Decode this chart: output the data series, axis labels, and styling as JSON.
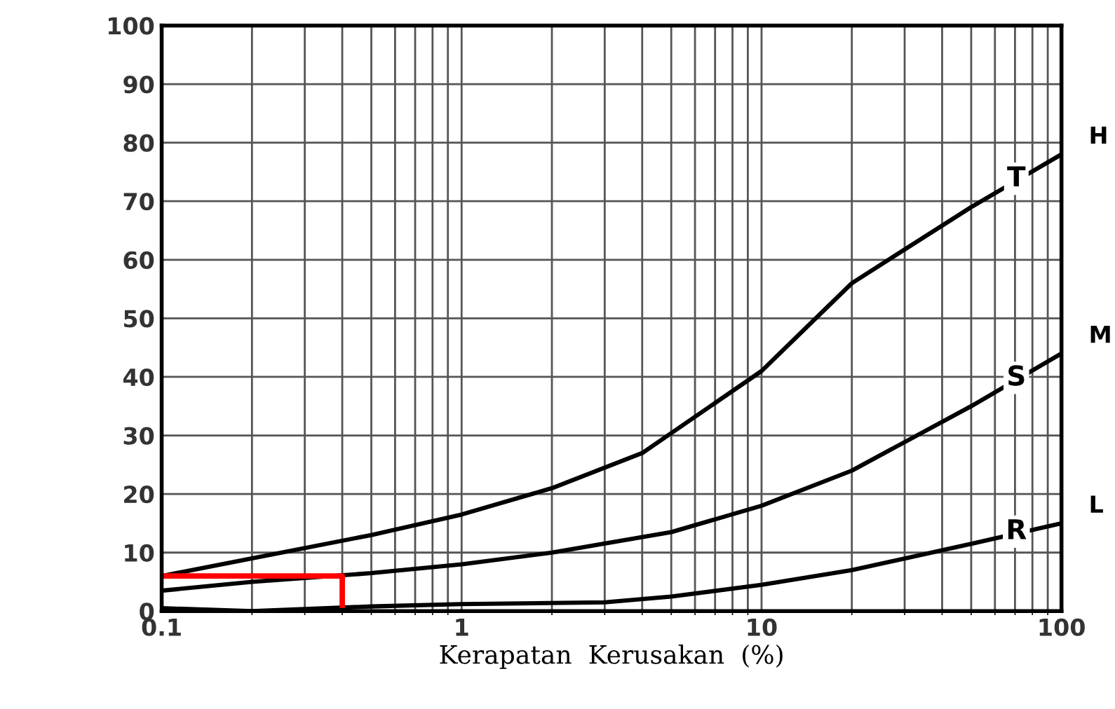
{
  "chart_data": {
    "type": "line",
    "xlabel": "Kerapatan  Kerusakan  (%)",
    "log": "x",
    "xlim": [
      0.1,
      100
    ],
    "xticks": [
      0.1,
      1,
      10,
      100
    ],
    "ylim": [
      0,
      100
    ],
    "yticks": [
      0,
      10,
      20,
      30,
      40,
      50,
      60,
      70,
      80,
      90,
      100
    ],
    "grid": true,
    "series": [
      {
        "name": "H",
        "color": "#000000",
        "x": [
          0.1,
          0.2,
          0.5,
          1,
          2,
          4,
          10,
          20,
          50,
          100
        ],
        "values": [
          6,
          9,
          13,
          16.5,
          21,
          27,
          41,
          56,
          69,
          78
        ]
      },
      {
        "name": "M",
        "color": "#000000",
        "x": [
          0.1,
          0.2,
          0.5,
          1,
          2,
          5,
          10,
          20,
          50,
          100
        ],
        "values": [
          3.5,
          5,
          6.5,
          8,
          10,
          13.5,
          18,
          24,
          35,
          44
        ]
      },
      {
        "name": "L",
        "color": "#000000",
        "x": [
          0.1,
          0.2,
          0.5,
          1,
          3,
          5,
          10,
          20,
          50,
          100
        ],
        "values": [
          0.5,
          0,
          0.8,
          1.2,
          1.5,
          2.5,
          4.5,
          7,
          11.5,
          15
        ]
      },
      {
        "color": "#ff0000",
        "x": [
          0.1,
          0.4,
          0.4
        ],
        "values": [
          6,
          6,
          1
        ]
      }
    ],
    "annotations": [
      "T",
      "S",
      "R"
    ]
  }
}
